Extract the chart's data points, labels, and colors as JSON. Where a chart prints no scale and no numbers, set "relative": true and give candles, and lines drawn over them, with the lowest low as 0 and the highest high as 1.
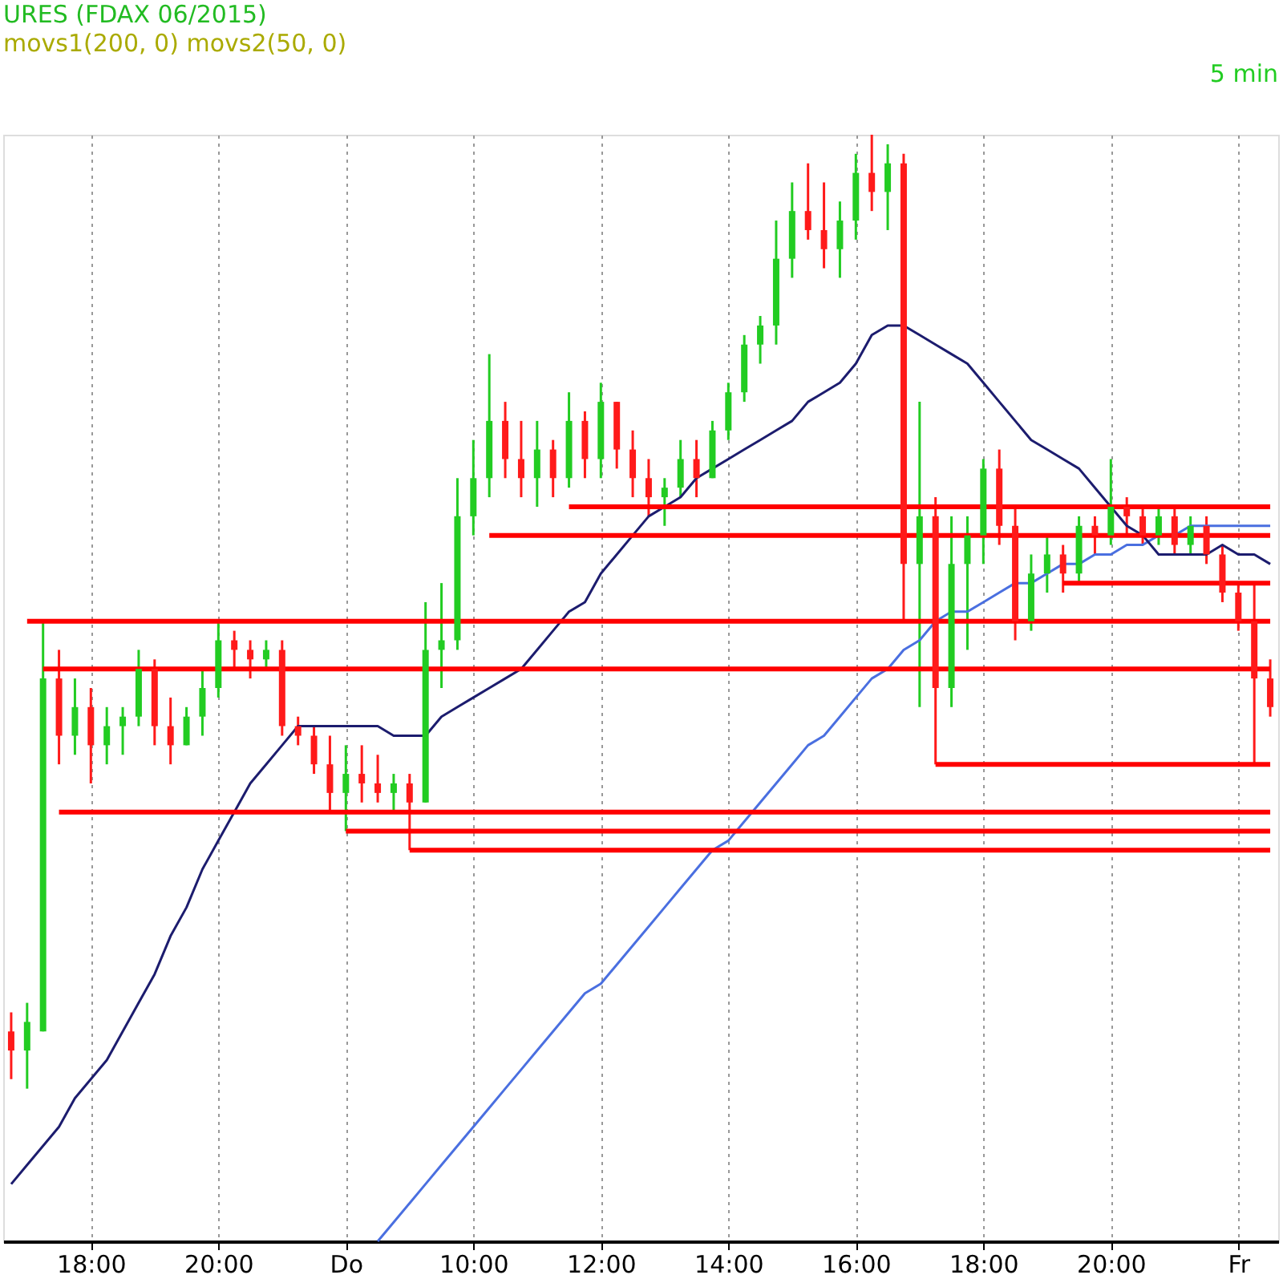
{
  "chart_data": {
    "type": "candlestick",
    "relative": true,
    "title": "URES (FDAX 06/2015)",
    "subtitle": "movs1(200, 0) movs2(50, 0)",
    "annotations": [
      "5 min"
    ],
    "categories": [
      null,
      null,
      null,
      null,
      null,
      "18:00",
      null,
      null,
      null,
      null,
      null,
      null,
      null,
      "20:00",
      null,
      null,
      null,
      null,
      null,
      null,
      null,
      "Do",
      null,
      null,
      null,
      null,
      null,
      null,
      null,
      "10:00",
      null,
      null,
      null,
      null,
      null,
      null,
      null,
      "12:00",
      null,
      null,
      null,
      null,
      null,
      null,
      null,
      "14:00",
      null,
      null,
      null,
      null,
      null,
      null,
      null,
      "16:00",
      null,
      null,
      null,
      null,
      null,
      null,
      null,
      "18:00",
      null,
      null,
      null,
      null,
      null,
      null,
      null,
      "20:00",
      null,
      null,
      null,
      null,
      null,
      null,
      null,
      "Fr",
      null,
      null
    ],
    "ohlc": [
      [
        0.06,
        0.08,
        0.01,
        0.04
      ],
      [
        0.04,
        0.09,
        0.0,
        0.07
      ],
      [
        0.06,
        0.49,
        0.06,
        0.43
      ],
      [
        0.43,
        0.46,
        0.34,
        0.37
      ],
      [
        0.37,
        0.43,
        0.35,
        0.4
      ],
      [
        0.4,
        0.42,
        0.32,
        0.36
      ],
      [
        0.36,
        0.4,
        0.34,
        0.38
      ],
      [
        0.38,
        0.4,
        0.35,
        0.39
      ],
      [
        0.39,
        0.46,
        0.38,
        0.44
      ],
      [
        0.44,
        0.45,
        0.36,
        0.38
      ],
      [
        0.38,
        0.41,
        0.34,
        0.36
      ],
      [
        0.36,
        0.4,
        0.36,
        0.39
      ],
      [
        0.39,
        0.44,
        0.37,
        0.42
      ],
      [
        0.42,
        0.49,
        0.41,
        0.47
      ],
      [
        0.47,
        0.48,
        0.44,
        0.46
      ],
      [
        0.46,
        0.47,
        0.43,
        0.45
      ],
      [
        0.45,
        0.47,
        0.44,
        0.46
      ],
      [
        0.46,
        0.47,
        0.37,
        0.38
      ],
      [
        0.38,
        0.39,
        0.36,
        0.37
      ],
      [
        0.37,
        0.38,
        0.33,
        0.34
      ],
      [
        0.34,
        0.37,
        0.29,
        0.31
      ],
      [
        0.31,
        0.36,
        0.27,
        0.33
      ],
      [
        0.33,
        0.36,
        0.3,
        0.32
      ],
      [
        0.32,
        0.35,
        0.3,
        0.31
      ],
      [
        0.31,
        0.33,
        0.29,
        0.32
      ],
      [
        0.32,
        0.33,
        0.25,
        0.3
      ],
      [
        0.3,
        0.51,
        0.3,
        0.46
      ],
      [
        0.46,
        0.53,
        0.42,
        0.47
      ],
      [
        0.47,
        0.64,
        0.46,
        0.6
      ],
      [
        0.6,
        0.68,
        0.58,
        0.64
      ],
      [
        0.64,
        0.77,
        0.62,
        0.7
      ],
      [
        0.7,
        0.72,
        0.64,
        0.66
      ],
      [
        0.66,
        0.7,
        0.62,
        0.64
      ],
      [
        0.64,
        0.7,
        0.61,
        0.67
      ],
      [
        0.67,
        0.68,
        0.62,
        0.64
      ],
      [
        0.64,
        0.73,
        0.63,
        0.7
      ],
      [
        0.7,
        0.71,
        0.64,
        0.66
      ],
      [
        0.66,
        0.74,
        0.64,
        0.72
      ],
      [
        0.72,
        0.72,
        0.65,
        0.67
      ],
      [
        0.67,
        0.69,
        0.62,
        0.64
      ],
      [
        0.64,
        0.66,
        0.6,
        0.62
      ],
      [
        0.62,
        0.64,
        0.59,
        0.63
      ],
      [
        0.63,
        0.68,
        0.62,
        0.66
      ],
      [
        0.66,
        0.68,
        0.62,
        0.64
      ],
      [
        0.64,
        0.7,
        0.64,
        0.69
      ],
      [
        0.69,
        0.74,
        0.68,
        0.73
      ],
      [
        0.73,
        0.79,
        0.72,
        0.78
      ],
      [
        0.78,
        0.81,
        0.76,
        0.8
      ],
      [
        0.8,
        0.91,
        0.78,
        0.87
      ],
      [
        0.87,
        0.95,
        0.85,
        0.92
      ],
      [
        0.92,
        0.97,
        0.89,
        0.9
      ],
      [
        0.9,
        0.95,
        0.86,
        0.88
      ],
      [
        0.88,
        0.93,
        0.85,
        0.91
      ],
      [
        0.91,
        0.98,
        0.89,
        0.96
      ],
      [
        0.96,
        1.0,
        0.92,
        0.94
      ],
      [
        0.94,
        0.99,
        0.9,
        0.97
      ],
      [
        0.97,
        0.98,
        0.49,
        0.55
      ],
      [
        0.55,
        0.72,
        0.4,
        0.6
      ],
      [
        0.6,
        0.62,
        0.34,
        0.42
      ],
      [
        0.42,
        0.6,
        0.4,
        0.55
      ],
      [
        0.55,
        0.6,
        0.46,
        0.58
      ],
      [
        0.58,
        0.66,
        0.55,
        0.65
      ],
      [
        0.65,
        0.67,
        0.57,
        0.59
      ],
      [
        0.59,
        0.61,
        0.47,
        0.49
      ],
      [
        0.49,
        0.56,
        0.48,
        0.54
      ],
      [
        0.54,
        0.58,
        0.52,
        0.56
      ],
      [
        0.56,
        0.57,
        0.52,
        0.54
      ],
      [
        0.54,
        0.6,
        0.53,
        0.59
      ],
      [
        0.59,
        0.6,
        0.56,
        0.58
      ],
      [
        0.58,
        0.66,
        0.57,
        0.61
      ],
      [
        0.61,
        0.62,
        0.58,
        0.6
      ],
      [
        0.6,
        0.61,
        0.57,
        0.58
      ],
      [
        0.58,
        0.61,
        0.57,
        0.6
      ],
      [
        0.6,
        0.61,
        0.56,
        0.57
      ],
      [
        0.57,
        0.6,
        0.56,
        0.59
      ],
      [
        0.59,
        0.6,
        0.55,
        0.56
      ],
      [
        0.56,
        0.57,
        0.51,
        0.52
      ],
      [
        0.52,
        0.53,
        0.48,
        0.49
      ],
      [
        0.49,
        0.53,
        0.34,
        0.43
      ],
      [
        0.43,
        0.45,
        0.39,
        0.4
      ]
    ],
    "colors": [
      "#ff1a1a",
      "#22cc22",
      "#22cc22",
      "#ff1a1a",
      "#22cc22",
      "#ff1a1a",
      "#22cc22",
      "#22cc22",
      "#22cc22",
      "#ff1a1a",
      "#ff1a1a",
      "#22cc22",
      "#22cc22",
      "#22cc22",
      "#ff1a1a",
      "#ff1a1a",
      "#22cc22",
      "#ff1a1a",
      "#ff1a1a",
      "#ff1a1a",
      "#ff1a1a",
      "#22cc22",
      "#ff1a1a",
      "#ff1a1a",
      "#22cc22",
      "#ff1a1a",
      "#22cc22",
      "#22cc22",
      "#22cc22",
      "#22cc22",
      "#22cc22",
      "#ff1a1a",
      "#ff1a1a",
      "#22cc22",
      "#ff1a1a",
      "#22cc22",
      "#ff1a1a",
      "#22cc22",
      "#ff1a1a",
      "#ff1a1a",
      "#ff1a1a",
      "#22cc22",
      "#22cc22",
      "#ff1a1a",
      "#22cc22",
      "#22cc22",
      "#22cc22",
      "#22cc22",
      "#22cc22",
      "#22cc22",
      "#ff1a1a",
      "#ff1a1a",
      "#22cc22",
      "#22cc22",
      "#ff1a1a",
      "#22cc22",
      "#ff1a1a",
      "#22cc22",
      "#ff1a1a",
      "#22cc22",
      "#22cc22",
      "#22cc22",
      "#ff1a1a",
      "#ff1a1a",
      "#22cc22",
      "#22cc22",
      "#ff1a1a",
      "#22cc22",
      "#ff1a1a",
      "#22cc22",
      "#ff1a1a",
      "#ff1a1a",
      "#22cc22",
      "#ff1a1a",
      "#22cc22",
      "#ff1a1a",
      "#ff1a1a",
      "#ff1a1a",
      "#ff1a1a",
      "#ff1a1a"
    ],
    "grid": "x",
    "tick_labels": "x",
    "series": [
      {
        "type": "line",
        "color": "#4a6fe0",
        "values": [
          null,
          null,
          null,
          null,
          null,
          null,
          null,
          null,
          null,
          null,
          null,
          null,
          null,
          null,
          null,
          null,
          null,
          null,
          null,
          null,
          null,
          null,
          null,
          -0.16,
          -0.14,
          -0.12,
          -0.1,
          -0.08,
          -0.06,
          -0.04,
          -0.02,
          0.0,
          0.02,
          0.04,
          0.06,
          0.08,
          0.1,
          0.11,
          0.13,
          0.15,
          0.17,
          0.19,
          0.21,
          0.23,
          0.25,
          0.26,
          0.28,
          0.3,
          0.32,
          0.34,
          0.36,
          0.37,
          0.39,
          0.41,
          0.43,
          0.44,
          0.46,
          0.47,
          0.49,
          0.5,
          0.5,
          0.51,
          0.52,
          0.53,
          0.53,
          0.54,
          0.55,
          0.55,
          0.56,
          0.56,
          0.57,
          0.57,
          0.58,
          0.58,
          0.59,
          0.59,
          0.59,
          0.59,
          0.59,
          0.59
        ]
      },
      {
        "type": "line",
        "color": "#1c1c6e",
        "values": [
          -0.1,
          -0.08,
          -0.06,
          -0.04,
          -0.01,
          0.01,
          0.03,
          0.06,
          0.09,
          0.12,
          0.16,
          0.19,
          0.23,
          0.26,
          0.29,
          0.32,
          0.34,
          0.36,
          0.38,
          0.38,
          0.38,
          0.38,
          0.38,
          0.38,
          0.37,
          0.37,
          0.37,
          0.39,
          0.4,
          0.41,
          0.42,
          0.43,
          0.44,
          0.46,
          0.48,
          0.5,
          0.51,
          0.54,
          0.56,
          0.58,
          0.6,
          0.61,
          0.62,
          0.64,
          0.65,
          0.66,
          0.67,
          0.68,
          0.69,
          0.7,
          0.72,
          0.73,
          0.74,
          0.76,
          0.79,
          0.8,
          0.8,
          0.79,
          0.78,
          0.77,
          0.76,
          0.74,
          0.72,
          0.7,
          0.68,
          0.67,
          0.66,
          0.65,
          0.63,
          0.61,
          0.59,
          0.58,
          0.56,
          0.56,
          0.56,
          0.56,
          0.57,
          0.56,
          0.56,
          0.55
        ]
      },
      {
        "type": "line",
        "color": "#ff0000",
        "values": [
          null,
          0.49,
          0.49,
          0.49,
          0.49,
          0.49,
          0.49,
          0.49,
          0.49,
          0.49,
          0.49,
          0.49,
          0.49,
          0.49,
          0.49,
          0.49,
          0.49,
          0.49,
          0.49,
          0.49,
          0.49,
          0.49,
          0.49,
          0.49,
          0.49,
          0.49,
          0.49,
          0.49,
          0.49,
          0.49,
          0.49,
          0.49,
          0.49,
          0.49,
          0.49,
          0.49,
          0.49,
          0.49,
          0.49,
          0.49,
          0.49,
          0.49,
          0.49,
          0.49,
          0.49,
          0.49,
          0.49,
          0.49,
          0.49,
          0.49,
          0.49,
          0.49,
          0.49,
          0.49,
          0.49,
          0.49,
          0.49,
          0.49,
          0.49,
          0.49,
          0.49,
          0.49,
          0.49,
          0.49,
          0.49,
          0.49,
          0.49,
          0.49,
          0.49,
          0.49,
          0.49,
          0.49,
          0.49,
          0.49,
          0.49,
          0.49,
          0.49,
          0.49,
          0.49,
          0.49
        ]
      },
      {
        "type": "line",
        "color": "#ff0000",
        "values": [
          null,
          null,
          0.44,
          0.44,
          0.44,
          0.44,
          0.44,
          0.44,
          0.44,
          0.44,
          0.44,
          0.44,
          0.44,
          0.44,
          0.44,
          0.44,
          0.44,
          0.44,
          0.44,
          0.44,
          0.44,
          0.44,
          0.44,
          0.44,
          0.44,
          0.44,
          0.44,
          0.44,
          0.44,
          0.44,
          0.44,
          0.44,
          0.44,
          0.44,
          0.44,
          0.44,
          0.44,
          0.44,
          0.44,
          0.44,
          0.44,
          0.44,
          0.44,
          0.44,
          0.44,
          0.44,
          0.44,
          0.44,
          0.44,
          0.44,
          0.44,
          0.44,
          0.44,
          0.44,
          0.44,
          0.44,
          0.44,
          0.44,
          0.44,
          0.44,
          0.44,
          0.44,
          0.44,
          0.44,
          0.44,
          0.44,
          0.44,
          0.44,
          0.44,
          0.44,
          0.44,
          0.44,
          0.44,
          0.44,
          0.44,
          0.44,
          0.44,
          0.44,
          0.44,
          0.44
        ]
      },
      {
        "type": "line",
        "color": "#ff0000",
        "values": [
          null,
          null,
          null,
          0.29,
          0.29,
          0.29,
          0.29,
          0.29,
          0.29,
          0.29,
          0.29,
          0.29,
          0.29,
          0.29,
          0.29,
          0.29,
          0.29,
          0.29,
          0.29,
          0.29,
          0.29,
          0.29,
          0.29,
          0.29,
          0.29,
          0.29,
          0.29,
          0.29,
          0.29,
          0.29,
          0.29,
          0.29,
          0.29,
          0.29,
          0.29,
          0.29,
          0.29,
          0.29,
          0.29,
          0.29,
          0.29,
          0.29,
          0.29,
          0.29,
          0.29,
          0.29,
          0.29,
          0.29,
          0.29,
          0.29,
          0.29,
          0.29,
          0.29,
          0.29,
          0.29,
          0.29,
          0.29,
          0.29,
          0.29,
          0.29,
          0.29,
          0.29,
          0.29,
          0.29,
          0.29,
          0.29,
          0.29,
          0.29,
          0.29,
          0.29,
          0.29,
          0.29,
          0.29,
          0.29,
          0.29,
          0.29,
          0.29,
          0.29,
          0.29,
          0.29
        ]
      },
      {
        "type": "line",
        "color": "#ff0000",
        "values": [
          null,
          null,
          null,
          null,
          null,
          null,
          null,
          null,
          null,
          null,
          null,
          null,
          null,
          null,
          null,
          null,
          null,
          null,
          null,
          null,
          null,
          0.27,
          0.27,
          0.27,
          0.27,
          0.27,
          0.27,
          0.27,
          0.27,
          0.27,
          0.27,
          0.27,
          0.27,
          0.27,
          0.27,
          0.27,
          0.27,
          0.27,
          0.27,
          0.27,
          0.27,
          0.27,
          0.27,
          0.27,
          0.27,
          0.27,
          0.27,
          0.27,
          0.27,
          0.27,
          0.27,
          0.27,
          0.27,
          0.27,
          0.27,
          0.27,
          0.27,
          0.27,
          0.27,
          0.27,
          0.27,
          0.27,
          0.27,
          0.27,
          0.27,
          0.27,
          0.27,
          0.27,
          0.27,
          0.27,
          0.27,
          0.27,
          0.27,
          0.27,
          0.27,
          0.27,
          0.27,
          0.27,
          0.27,
          0.27
        ]
      },
      {
        "type": "line",
        "color": "#ff0000",
        "values": [
          null,
          null,
          null,
          null,
          null,
          null,
          null,
          null,
          null,
          null,
          null,
          null,
          null,
          null,
          null,
          null,
          null,
          null,
          null,
          null,
          null,
          null,
          null,
          null,
          null,
          0.25,
          0.25,
          0.25,
          0.25,
          0.25,
          0.25,
          0.25,
          0.25,
          0.25,
          0.25,
          0.25,
          0.25,
          0.25,
          0.25,
          0.25,
          0.25,
          0.25,
          0.25,
          0.25,
          0.25,
          0.25,
          0.25,
          0.25,
          0.25,
          0.25,
          0.25,
          0.25,
          0.25,
          0.25,
          0.25,
          0.25,
          0.25,
          0.25,
          0.25,
          0.25,
          0.25,
          0.25,
          0.25,
          0.25,
          0.25,
          0.25,
          0.25,
          0.25,
          0.25,
          0.25,
          0.25,
          0.25,
          0.25,
          0.25,
          0.25,
          0.25,
          0.25,
          0.25,
          0.25,
          0.25
        ]
      },
      {
        "type": "line",
        "color": "#ff0000",
        "values": [
          null,
          null,
          null,
          null,
          null,
          null,
          null,
          null,
          null,
          null,
          null,
          null,
          null,
          null,
          null,
          null,
          null,
          null,
          null,
          null,
          null,
          null,
          null,
          null,
          null,
          null,
          null,
          null,
          null,
          null,
          0.58,
          0.58,
          0.58,
          0.58,
          0.58,
          0.58,
          0.58,
          0.58,
          0.58,
          0.58,
          0.58,
          0.58,
          0.58,
          0.58,
          0.58,
          0.58,
          0.58,
          0.58,
          0.58,
          0.58,
          0.58,
          0.58,
          0.58,
          0.58,
          0.58,
          0.58,
          0.58,
          0.58,
          0.58,
          0.58,
          0.58,
          0.58,
          0.58,
          0.58,
          0.58,
          0.58,
          0.58,
          0.58,
          0.58,
          0.58,
          0.58,
          0.58,
          0.58,
          0.58,
          0.58,
          0.58,
          0.58,
          0.58,
          0.58,
          0.58
        ]
      },
      {
        "type": "line",
        "color": "#ff0000",
        "values": [
          null,
          null,
          null,
          null,
          null,
          null,
          null,
          null,
          null,
          null,
          null,
          null,
          null,
          null,
          null,
          null,
          null,
          null,
          null,
          null,
          null,
          null,
          null,
          null,
          null,
          null,
          null,
          null,
          null,
          null,
          null,
          null,
          null,
          null,
          null,
          0.61,
          0.61,
          0.61,
          0.61,
          0.61,
          0.61,
          0.61,
          0.61,
          0.61,
          0.61,
          0.61,
          0.61,
          0.61,
          0.61,
          0.61,
          0.61,
          0.61,
          0.61,
          0.61,
          0.61,
          0.61,
          0.61,
          0.61,
          0.61,
          0.61,
          0.61,
          0.61,
          0.61,
          0.61,
          0.61,
          0.61,
          0.61,
          0.61,
          0.61,
          0.61,
          0.61,
          0.61,
          0.61,
          0.61,
          0.61,
          0.61,
          0.61,
          0.61,
          0.61,
          0.61
        ]
      },
      {
        "type": "line",
        "color": "#ff0000",
        "values": [
          null,
          null,
          null,
          null,
          null,
          null,
          null,
          null,
          null,
          null,
          null,
          null,
          null,
          null,
          null,
          null,
          null,
          null,
          null,
          null,
          null,
          null,
          null,
          null,
          null,
          null,
          null,
          null,
          null,
          null,
          null,
          null,
          null,
          null,
          null,
          null,
          null,
          null,
          null,
          null,
          null,
          null,
          null,
          null,
          null,
          null,
          null,
          null,
          null,
          null,
          null,
          null,
          null,
          null,
          null,
          null,
          null,
          null,
          null,
          null,
          null,
          null,
          null,
          null,
          null,
          null,
          0.53,
          0.53,
          0.53,
          0.53,
          0.53,
          0.53,
          0.53,
          0.53,
          0.53,
          0.53,
          0.53,
          0.53,
          0.53,
          0.53
        ]
      },
      {
        "type": "line",
        "color": "#ff0000",
        "values": [
          null,
          null,
          null,
          null,
          null,
          null,
          null,
          null,
          null,
          null,
          null,
          null,
          null,
          null,
          null,
          null,
          null,
          null,
          null,
          null,
          null,
          null,
          null,
          null,
          null,
          null,
          null,
          null,
          null,
          null,
          null,
          null,
          null,
          null,
          null,
          null,
          null,
          null,
          null,
          null,
          null,
          null,
          null,
          null,
          null,
          null,
          null,
          null,
          null,
          null,
          null,
          null,
          null,
          null,
          null,
          null,
          null,
          null,
          0.34,
          0.34,
          0.34,
          0.34,
          0.34,
          0.34,
          0.34,
          0.34,
          0.34,
          0.34,
          0.34,
          0.34,
          0.34,
          0.34,
          0.34,
          0.34,
          0.34,
          0.34,
          0.34,
          0.34,
          0.34,
          0.34
        ]
      }
    ]
  }
}
